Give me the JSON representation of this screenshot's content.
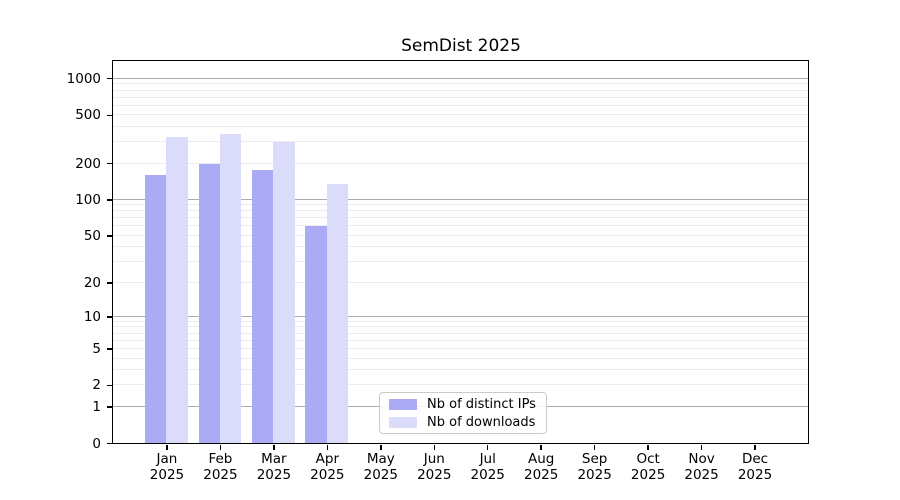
{
  "figure": {
    "background": "#ffffff"
  },
  "chart_data": {
    "type": "bar",
    "title": "SemDist 2025",
    "x_axis": {
      "categories": [
        "Jan",
        "Feb",
        "Mar",
        "Apr",
        "May",
        "Jun",
        "Jul",
        "Aug",
        "Sep",
        "Oct",
        "Nov",
        "Dec"
      ],
      "year_line": "2025"
    },
    "y_axis": {
      "scale": "log10(value+1)",
      "ylim": [
        0,
        1400
      ],
      "tick_values": [
        0,
        1,
        2,
        5,
        10,
        20,
        50,
        100,
        200,
        500,
        1000
      ],
      "tick_labels": [
        "0",
        "1",
        "2",
        "5",
        "10",
        "20",
        "50",
        "100",
        "200",
        "500",
        "1000"
      ],
      "major_gridlines": [
        1,
        10,
        100,
        1000
      ],
      "minor_gridlines": [
        2,
        3,
        4,
        5,
        6,
        7,
        8,
        9,
        20,
        30,
        40,
        50,
        60,
        70,
        80,
        90,
        200,
        300,
        400,
        500,
        600,
        700,
        800,
        900
      ]
    },
    "series": [
      {
        "name": "Nb of distinct IPs",
        "color": "#aaaaf5",
        "values": [
          160,
          195,
          175,
          60,
          0,
          0,
          0,
          0,
          0,
          0,
          0,
          0
        ]
      },
      {
        "name": "Nb of downloads",
        "color": "#dbdbfa",
        "values": [
          330,
          350,
          300,
          135,
          0,
          0,
          0,
          0,
          0,
          0,
          0,
          0
        ]
      }
    ],
    "legend": {
      "position": "lower center-left, inside plot",
      "entries": [
        "Nb of distinct IPs",
        "Nb of downloads"
      ]
    },
    "grid": true,
    "colors": {
      "major_grid": "#ababab",
      "minor_grid": "#ececec",
      "spine": "#000000",
      "text": "#000000",
      "plot_background": "#ffffff"
    }
  }
}
